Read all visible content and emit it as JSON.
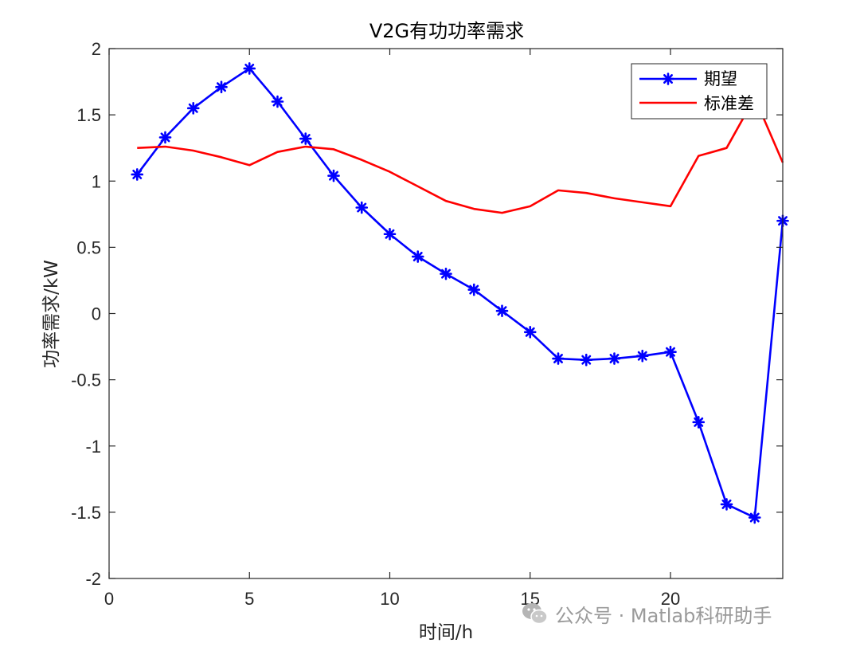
{
  "chart_data": {
    "type": "line",
    "title": "V2G有功功率需求",
    "xlabel": "时间/h",
    "ylabel": "功率需求/kW",
    "xlim": [
      0,
      24
    ],
    "ylim": [
      -2,
      2
    ],
    "xticks": [
      0,
      5,
      10,
      15,
      20
    ],
    "yticks": [
      -2,
      -1.5,
      -1,
      -0.5,
      0,
      0.5,
      1,
      1.5,
      2
    ],
    "xtick_labels": [
      "0",
      "5",
      "10",
      "15",
      "20"
    ],
    "ytick_labels": [
      "-2",
      "-1.5",
      "-1",
      "-0.5",
      "0",
      "0.5",
      "1",
      "1.5",
      "2"
    ],
    "grid": false,
    "legend_position": "top-right",
    "x": [
      1,
      2,
      3,
      4,
      5,
      6,
      7,
      8,
      9,
      10,
      11,
      12,
      13,
      14,
      15,
      16,
      17,
      18,
      19,
      20,
      21,
      22,
      23,
      24
    ],
    "series": [
      {
        "name": "期望",
        "color": "#0000ff",
        "marker": "asterisk",
        "values": [
          1.05,
          1.33,
          1.55,
          1.71,
          1.85,
          1.6,
          1.32,
          1.04,
          0.8,
          0.6,
          0.43,
          0.3,
          0.18,
          0.02,
          -0.14,
          -0.34,
          -0.35,
          -0.34,
          -0.32,
          -0.29,
          -0.82,
          -1.44,
          -1.54,
          0.7
        ]
      },
      {
        "name": "标准差",
        "color": "#ff0000",
        "marker": "none",
        "values": [
          1.25,
          1.26,
          1.23,
          1.18,
          1.12,
          1.22,
          1.26,
          1.24,
          1.16,
          1.07,
          0.96,
          0.85,
          0.79,
          0.76,
          0.81,
          0.93,
          0.91,
          0.87,
          0.84,
          0.81,
          1.19,
          1.25,
          1.63,
          1.14
        ]
      }
    ]
  },
  "watermark": {
    "icon": "wechat-icon",
    "text": "公众号 · Matlab科研助手"
  }
}
